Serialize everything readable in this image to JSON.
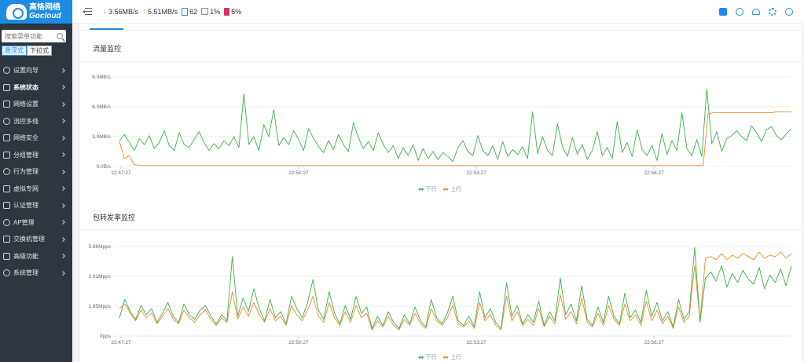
{
  "app": {
    "logo_cn": "高恪网络",
    "logo_en": "Gocloud"
  },
  "sidebar": {
    "search_placeholder": "搜索菜单功能",
    "modes": [
      "悬浮式",
      "下拉式"
    ],
    "items": [
      {
        "label": "设置向导",
        "icon": "wizard-icon",
        "active": false
      },
      {
        "label": "系统状态",
        "icon": "status-icon",
        "active": true
      },
      {
        "label": "网络设置",
        "icon": "monitor-icon",
        "active": false
      },
      {
        "label": "流控多线",
        "icon": "flow-icon",
        "active": false
      },
      {
        "label": "网络安全",
        "icon": "shield-icon",
        "active": false
      },
      {
        "label": "分组管理",
        "icon": "group-icon",
        "active": false
      },
      {
        "label": "行为管理",
        "icon": "behavior-icon",
        "active": false
      },
      {
        "label": "虚拟专网",
        "icon": "vpn-icon",
        "active": false
      },
      {
        "label": "认证管理",
        "icon": "auth-icon",
        "active": false
      },
      {
        "label": "AP管理",
        "icon": "ap-icon",
        "active": false
      },
      {
        "label": "交换机管理",
        "icon": "switch-icon",
        "active": false
      },
      {
        "label": "高级功能",
        "icon": "advanced-icon",
        "active": false
      },
      {
        "label": "系统管理",
        "icon": "system-gear-icon",
        "active": false
      }
    ]
  },
  "topbar": {
    "download": "3.56MB/s",
    "upload": "5.51MB/s",
    "devices": "62",
    "cpu": "1%",
    "memory": "5%",
    "icons": [
      "shirt-icon",
      "globe-icon",
      "cloud-icon",
      "gear-icon",
      "settings-icon"
    ]
  },
  "colors": {
    "download": "#3fae49",
    "upload": "#f08a2c",
    "accent": "#1e8ce6"
  },
  "panels": {
    "traffic_title": "流量监控",
    "packet_title": "包转发率监控"
  },
  "chart_data": [
    {
      "type": "line",
      "title": "流量监控",
      "yticks": [
        "9.0MB/s",
        "6.0MB/s",
        "3.0MB/s",
        "0.0B/s"
      ],
      "ylim": [
        0,
        9
      ],
      "xticks": [
        "22:47:27",
        "22:50:27",
        "22:53:27",
        "22:56:27"
      ],
      "legend": [
        "下行",
        "上行"
      ],
      "legend_position": "bottom-center",
      "series": [
        {
          "name": "下行",
          "values": [
            2.6,
            3.2,
            2.4,
            1.6,
            2.8,
            2.2,
            3.1,
            1.8,
            2.4,
            3.6,
            2.1,
            1.6,
            3.4,
            2.2,
            1.9,
            2.7,
            3.5,
            2.4,
            1.6,
            2.3,
            1.8,
            2.6,
            2.1,
            3.0,
            1.9,
            7.3,
            2.2,
            3.0,
            1.6,
            4.2,
            3.0,
            5.7,
            2.1,
            2.9,
            2.2,
            3.6,
            2.7,
            1.6,
            3.8,
            2.8,
            2.0,
            1.4,
            2.6,
            1.7,
            3.2,
            2.2,
            1.5,
            4.4,
            2.9,
            1.8,
            2.5,
            1.6,
            3.4,
            2.2,
            1.4,
            2.1,
            0.8,
            1.9,
            1.1,
            2.2,
            0.6,
            1.8,
            0.8,
            1.5,
            0.7,
            1.4,
            1.0,
            0.5,
            1.9,
            2.6,
            1.5,
            1.1,
            3.1,
            1.6,
            1.1,
            2.1,
            0.7,
            2.5,
            1.0,
            1.7,
            1.2,
            2.0,
            0.8,
            5.5,
            1.3,
            3.0,
            1.6,
            1.1,
            4.3,
            2.0,
            1.0,
            2.9,
            1.2,
            2.2,
            0.7,
            1.6,
            3.5,
            1.1,
            1.9,
            0.8,
            4.5,
            1.4,
            2.4,
            1.0,
            3.7,
            1.7,
            1.1,
            2.1,
            0.6,
            3.3,
            1.2,
            2.6,
            1.6,
            5.4,
            1.8,
            1.1,
            2.7,
            1.0,
            7.8,
            2.3,
            3.5,
            1.5,
            2.8,
            3.1,
            3.6,
            3.0,
            2.6,
            4.1,
            3.4,
            2.5,
            3.7,
            4.0,
            3.1,
            2.7,
            3.3,
            3.8
          ]
        },
        {
          "name": "上行",
          "values": [
            2.5,
            0.8,
            1.1,
            0.2,
            0.1,
            0.1,
            0.1,
            0.1,
            0.1,
            0.1,
            0.1,
            0.1,
            0.1,
            0.1,
            0.1,
            0.1,
            0.1,
            0.1,
            0.1,
            0.1,
            0.1,
            0.1,
            0.1,
            0.1,
            0.1,
            0.1,
            0.1,
            0.1,
            0.1,
            0.1,
            0.1,
            0.1,
            0.1,
            0.1,
            0.1,
            0.1,
            0.1,
            0.1,
            0.1,
            0.1,
            0.1,
            0.1,
            0.1,
            0.1,
            0.1,
            0.1,
            0.1,
            0.1,
            0.1,
            0.1,
            0.1,
            0.1,
            0.1,
            0.1,
            0.1,
            0.1,
            0.1,
            0.1,
            0.1,
            0.1,
            0.1,
            0.1,
            0.1,
            0.1,
            0.1,
            0.1,
            0.1,
            0.1,
            0.1,
            0.1,
            0.1,
            0.1,
            0.1,
            0.1,
            0.1,
            0.1,
            0.1,
            0.1,
            0.1,
            0.1,
            0.1,
            0.1,
            0.1,
            0.1,
            0.1,
            0.1,
            0.1,
            0.1,
            0.1,
            0.1,
            0.1,
            0.1,
            0.1,
            0.1,
            0.1,
            0.1,
            0.1,
            0.1,
            0.1,
            0.1,
            0.1,
            0.1,
            0.1,
            0.1,
            0.1,
            0.1,
            0.1,
            0.1,
            0.1,
            0.1,
            0.1,
            0.1,
            0.1,
            0.1,
            0.1,
            0.1,
            0.1,
            0.1,
            0.1,
            0.1,
            5.3,
            5.4,
            5.4,
            5.4,
            5.4,
            5.4,
            5.4,
            5.4,
            5.4,
            5.4,
            5.4,
            5.4,
            5.4,
            5.4,
            5.5,
            5.5,
            5.5,
            5.5
          ]
        }
      ]
    },
    {
      "type": "line",
      "title": "包转发率监控",
      "yticks": [
        "5.86Mpps",
        "3.91Mpps",
        "1.95Mpps",
        "0pps"
      ],
      "ylim": [
        0,
        5.86
      ],
      "xticks": [
        "22:47:27",
        "22:50:27",
        "22:53:27",
        "22:56:27"
      ],
      "legend": [
        "下行",
        "上行"
      ],
      "legend_position": "bottom-center",
      "series": [
        {
          "name": "下行",
          "values": [
            1.2,
            2.4,
            1.6,
            1.1,
            2.0,
            1.4,
            1.8,
            0.9,
            1.5,
            2.2,
            1.3,
            0.9,
            2.1,
            1.4,
            1.1,
            1.7,
            2.0,
            1.3,
            0.8,
            1.4,
            1.0,
            5.2,
            1.3,
            2.5,
            1.6,
            3.1,
            1.8,
            1.0,
            2.4,
            1.2,
            1.6,
            0.8,
            2.6,
            1.8,
            1.2,
            2.2,
            3.7,
            1.7,
            1.1,
            2.9,
            1.5,
            0.8,
            2.0,
            1.1,
            2.6,
            1.5,
            1.9,
            0.5,
            1.3,
            0.7,
            1.6,
            0.9,
            0.5,
            1.4,
            0.8,
            1.9,
            1.0,
            0.6,
            2.4,
            1.2,
            0.8,
            1.5,
            2.6,
            1.0,
            0.7,
            1.3,
            0.6,
            2.9,
            1.2,
            1.8,
            0.9,
            0.5,
            3.5,
            1.3,
            2.0,
            0.8,
            1.4,
            0.9,
            2.3,
            0.7,
            1.6,
            1.0,
            3.8,
            1.4,
            2.1,
            1.0,
            3.3,
            1.1,
            0.7,
            1.9,
            0.9,
            2.6,
            1.3,
            0.8,
            2.8,
            1.2,
            1.7,
            0.9,
            3.0,
            1.3,
            2.2,
            1.0,
            1.6,
            0.6,
            2.4,
            1.1,
            1.6,
            5.8,
            0.9,
            3.8,
            4.2,
            3.6,
            4.6,
            3.2,
            4.1,
            3.5,
            4.3,
            3.7,
            3.4,
            4.5,
            3.1,
            4.0,
            3.5,
            4.4,
            3.3,
            4.6
          ]
        },
        {
          "name": "上行",
          "values": [
            1.8,
            2.1,
            1.5,
            1.0,
            1.7,
            1.2,
            1.5,
            0.8,
            1.3,
            1.8,
            1.1,
            0.8,
            1.7,
            1.2,
            0.9,
            1.4,
            1.7,
            1.1,
            0.7,
            1.2,
            0.9,
            2.9,
            1.1,
            1.9,
            1.3,
            2.2,
            1.4,
            0.9,
            1.8,
            1.0,
            1.3,
            0.7,
            2.0,
            1.4,
            1.0,
            1.7,
            2.6,
            1.3,
            0.9,
            2.2,
            1.2,
            0.7,
            1.6,
            0.9,
            2.0,
            1.2,
            1.5,
            0.4,
            1.0,
            0.6,
            1.3,
            0.7,
            0.4,
            1.1,
            0.7,
            1.5,
            0.8,
            0.5,
            1.8,
            1.0,
            0.7,
            1.2,
            2.0,
            0.8,
            0.6,
            1.0,
            0.5,
            2.2,
            1.0,
            1.4,
            0.7,
            0.4,
            2.6,
            1.0,
            1.6,
            0.7,
            1.1,
            0.7,
            1.8,
            0.6,
            1.3,
            0.8,
            2.7,
            1.1,
            1.6,
            0.8,
            2.5,
            0.9,
            0.6,
            1.5,
            0.7,
            2.0,
            1.1,
            0.7,
            2.1,
            1.0,
            1.4,
            0.7,
            2.3,
            1.0,
            1.7,
            0.8,
            1.3,
            0.5,
            1.9,
            0.9,
            1.3,
            4.6,
            1.0,
            5.1,
            5.2,
            5.0,
            5.4,
            5.0,
            5.3,
            5.1,
            5.4,
            5.2,
            5.0,
            5.5,
            5.1,
            5.3,
            5.2,
            5.5,
            5.1,
            5.4
          ]
        }
      ]
    }
  ]
}
